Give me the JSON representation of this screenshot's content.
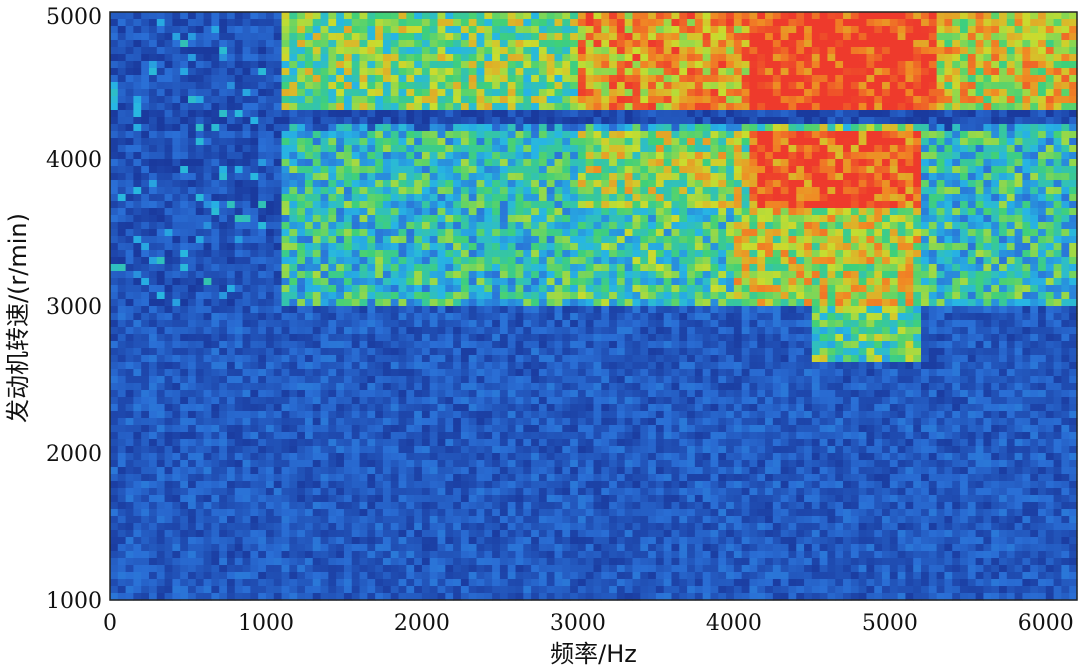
{
  "chart_data": {
    "type": "heatmap",
    "title": "",
    "xlabel": "频率/Hz",
    "ylabel": "发动机转速/(r/min)",
    "xlim": [
      0,
      6200
    ],
    "ylim": [
      1000,
      5000
    ],
    "x_ticks": [
      "0",
      "1000",
      "2000",
      "3000",
      "4000",
      "5000",
      "6000"
    ],
    "y_ticks": [
      "1000",
      "2000",
      "3000",
      "4000",
      "5000"
    ],
    "x_tick_values": [
      0,
      1000,
      2000,
      3000,
      4000,
      5000,
      6000
    ],
    "y_tick_values": [
      1000,
      2000,
      3000,
      4000,
      5000
    ],
    "grid": false,
    "colormap": [
      "#1a3a9e",
      "#2a6fd6",
      "#27b6e4",
      "#3fd07a",
      "#c9dd2e",
      "#f08a24",
      "#ee3a2c"
    ],
    "intensity_regions": [
      {
        "freq_range": [
          4100,
          5300
        ],
        "rpm_range": [
          4350,
          5000
        ],
        "level": 1.0
      },
      {
        "freq_range": [
          4100,
          5200
        ],
        "rpm_range": [
          3650,
          4250
        ],
        "level": 0.95
      },
      {
        "freq_range": [
          3000,
          4100
        ],
        "rpm_range": [
          4350,
          5000
        ],
        "level": 0.8
      },
      {
        "freq_range": [
          5300,
          6200
        ],
        "rpm_range": [
          4350,
          5000
        ],
        "level": 0.7
      },
      {
        "freq_range": [
          1100,
          3000
        ],
        "rpm_range": [
          4350,
          5000
        ],
        "level": 0.55
      },
      {
        "freq_range": [
          3000,
          4100
        ],
        "rpm_range": [
          3650,
          4250
        ],
        "level": 0.6
      },
      {
        "freq_range": [
          4000,
          5200
        ],
        "rpm_range": [
          3000,
          3650
        ],
        "level": 0.65
      },
      {
        "freq_range": [
          1100,
          3000
        ],
        "rpm_range": [
          3000,
          4250
        ],
        "level": 0.4
      },
      {
        "freq_range": [
          3000,
          4000
        ],
        "rpm_range": [
          3000,
          3650
        ],
        "level": 0.45
      },
      {
        "freq_range": [
          5200,
          6200
        ],
        "rpm_range": [
          3000,
          4250
        ],
        "level": 0.4
      },
      {
        "freq_range": [
          4500,
          5200
        ],
        "rpm_range": [
          2600,
          3000
        ],
        "level": 0.5
      },
      {
        "freq_range": [
          0,
          6200
        ],
        "rpm_range": [
          1000,
          3000
        ],
        "level": 0.1
      }
    ]
  }
}
